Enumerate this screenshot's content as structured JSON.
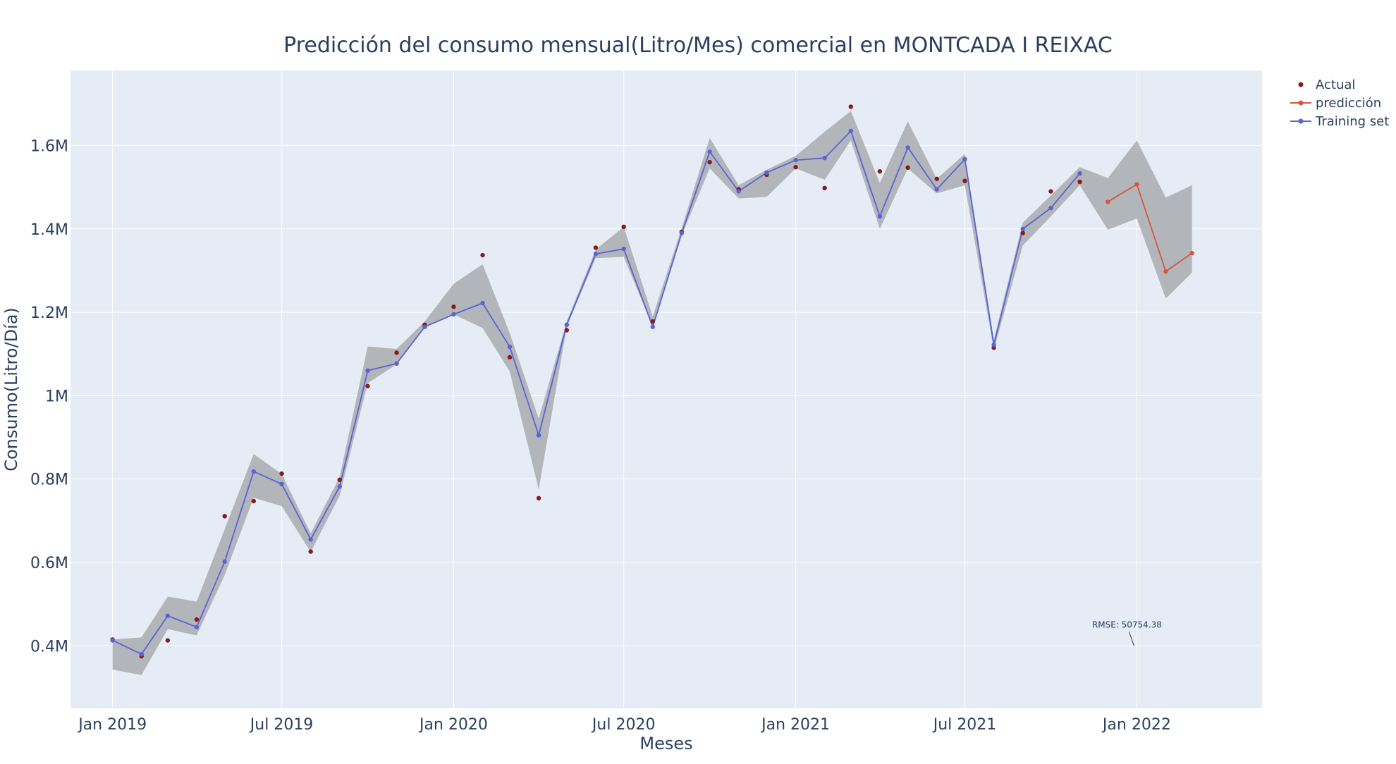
{
  "chart_data": {
    "type": "line",
    "title": "Predicción del consumo mensual(Litro/Mes) comercial en MONTCADA I REIXAC",
    "xlabel": "Meses",
    "ylabel": "Consumo(Litro/Día)",
    "xlim": [
      "2018-11-17",
      "2022-05-15"
    ],
    "ylim": [
      250000,
      1780000
    ],
    "x_ticks": [
      {
        "date": "2019-01-01",
        "label": "Jan 2019"
      },
      {
        "date": "2019-07-01",
        "label": "Jul 2019"
      },
      {
        "date": "2020-01-01",
        "label": "Jan 2020"
      },
      {
        "date": "2020-07-01",
        "label": "Jul 2020"
      },
      {
        "date": "2021-01-01",
        "label": "Jan 2021"
      },
      {
        "date": "2021-07-01",
        "label": "Jul 2021"
      },
      {
        "date": "2022-01-01",
        "label": "Jan 2022"
      }
    ],
    "y_ticks": [
      {
        "value": 400000,
        "label": "0.4M"
      },
      {
        "value": 600000,
        "label": "0.6M"
      },
      {
        "value": 800000,
        "label": "0.8M"
      },
      {
        "value": 1000000,
        "label": "1M"
      },
      {
        "value": 1200000,
        "label": "1.2M"
      },
      {
        "value": 1400000,
        "label": "1.4M"
      },
      {
        "value": 1600000,
        "label": "1.6M"
      }
    ],
    "grid": true,
    "legend_position": "top-right",
    "colors": {
      "actual": "#8b1a1a",
      "prediccion": "#d9553e",
      "training": "#5b63d6",
      "band": "#a9abae",
      "plot_bg": "#e5ecf6",
      "grid": "#ffffff",
      "text": "#2a3f5f"
    },
    "series": [
      {
        "name": "Actual",
        "mode": "markers",
        "points": [
          [
            "2019-01-01",
            415000
          ],
          [
            "2019-02-01",
            375000
          ],
          [
            "2019-03-01",
            413000
          ],
          [
            "2019-04-01",
            463000
          ],
          [
            "2019-05-01",
            711000
          ],
          [
            "2019-06-01",
            747000
          ],
          [
            "2019-07-01",
            813000
          ],
          [
            "2019-08-01",
            626000
          ],
          [
            "2019-09-01",
            798000
          ],
          [
            "2019-10-01",
            1023000
          ],
          [
            "2019-11-01",
            1103000
          ],
          [
            "2019-12-01",
            1170000
          ],
          [
            "2020-01-01",
            1213000
          ],
          [
            "2020-02-01",
            1337000
          ],
          [
            "2020-03-01",
            1092000
          ],
          [
            "2020-04-01",
            754000
          ],
          [
            "2020-05-01",
            1157000
          ],
          [
            "2020-06-01",
            1355000
          ],
          [
            "2020-07-01",
            1405000
          ],
          [
            "2020-08-01",
            1178000
          ],
          [
            "2020-09-01",
            1393000
          ],
          [
            "2020-10-01",
            1560000
          ],
          [
            "2020-11-01",
            1495000
          ],
          [
            "2020-12-01",
            1530000
          ],
          [
            "2021-01-01",
            1548000
          ],
          [
            "2021-02-01",
            1498000
          ],
          [
            "2021-03-01",
            1693000
          ],
          [
            "2021-04-01",
            1538000
          ],
          [
            "2021-05-01",
            1547000
          ],
          [
            "2021-06-01",
            1520000
          ],
          [
            "2021-07-01",
            1515000
          ],
          [
            "2021-08-01",
            1115000
          ],
          [
            "2021-09-01",
            1390000
          ],
          [
            "2021-10-01",
            1490000
          ],
          [
            "2021-11-01",
            1513000
          ]
        ]
      },
      {
        "name": "predicción",
        "mode": "lines+markers",
        "points": [
          [
            "2021-12-01",
            1465000
          ],
          [
            "2022-01-01",
            1507000
          ],
          [
            "2022-02-01",
            1298000
          ],
          [
            "2022-03-01",
            1342000
          ]
        ]
      },
      {
        "name": "Training set",
        "mode": "lines+markers",
        "points": [
          [
            "2019-01-01",
            413000
          ],
          [
            "2019-02-01",
            380000
          ],
          [
            "2019-03-01",
            472000
          ],
          [
            "2019-04-01",
            445000
          ],
          [
            "2019-05-01",
            602000
          ],
          [
            "2019-06-01",
            818000
          ],
          [
            "2019-07-01",
            788000
          ],
          [
            "2019-08-01",
            655000
          ],
          [
            "2019-09-01",
            782000
          ],
          [
            "2019-10-01",
            1060000
          ],
          [
            "2019-11-01",
            1077000
          ],
          [
            "2019-12-01",
            1165000
          ],
          [
            "2020-01-01",
            1195000
          ],
          [
            "2020-02-01",
            1222000
          ],
          [
            "2020-03-01",
            1117000
          ],
          [
            "2020-04-01",
            905000
          ],
          [
            "2020-05-01",
            1170000
          ],
          [
            "2020-06-01",
            1340000
          ],
          [
            "2020-07-01",
            1352000
          ],
          [
            "2020-08-01",
            1165000
          ],
          [
            "2020-09-01",
            1390000
          ],
          [
            "2020-10-01",
            1585000
          ],
          [
            "2020-11-01",
            1490000
          ],
          [
            "2020-12-01",
            1535000
          ],
          [
            "2021-01-01",
            1565000
          ],
          [
            "2021-02-01",
            1570000
          ],
          [
            "2021-03-01",
            1635000
          ],
          [
            "2021-04-01",
            1430000
          ],
          [
            "2021-05-01",
            1595000
          ],
          [
            "2021-06-01",
            1495000
          ],
          [
            "2021-07-01",
            1567000
          ],
          [
            "2021-08-01",
            1122000
          ],
          [
            "2021-09-01",
            1400000
          ],
          [
            "2021-10-01",
            1450000
          ],
          [
            "2021-11-01",
            1533000
          ]
        ]
      }
    ],
    "confidence_band": [
      [
        "2019-01-01",
        415000,
        343000
      ],
      [
        "2019-02-01",
        420000,
        330000
      ],
      [
        "2019-03-01",
        518000,
        440000
      ],
      [
        "2019-04-01",
        506000,
        425000
      ],
      [
        "2019-05-01",
        680000,
        570000
      ],
      [
        "2019-06-01",
        860000,
        755000
      ],
      [
        "2019-07-01",
        812000,
        735000
      ],
      [
        "2019-08-01",
        670000,
        625000
      ],
      [
        "2019-09-01",
        805000,
        760000
      ],
      [
        "2019-10-01",
        1118000,
        1030000
      ],
      [
        "2019-11-01",
        1112000,
        1075000
      ],
      [
        "2019-12-01",
        1178000,
        1165000
      ],
      [
        "2020-01-01",
        1268000,
        1195000
      ],
      [
        "2020-02-01",
        1315000,
        1162000
      ],
      [
        "2020-03-01",
        1150000,
        1058000
      ],
      [
        "2020-04-01",
        945000,
        775000
      ],
      [
        "2020-05-01",
        1178000,
        1165000
      ],
      [
        "2020-06-01",
        1350000,
        1330000
      ],
      [
        "2020-07-01",
        1405000,
        1333000
      ],
      [
        "2020-08-01",
        1190000,
        1165000
      ],
      [
        "2020-09-01",
        1402000,
        1385000
      ],
      [
        "2020-10-01",
        1618000,
        1545000
      ],
      [
        "2020-11-01",
        1505000,
        1473000
      ],
      [
        "2020-12-01",
        1542000,
        1477000
      ],
      [
        "2021-01-01",
        1575000,
        1545000
      ],
      [
        "2021-02-01",
        1633000,
        1518000
      ],
      [
        "2021-03-01",
        1683000,
        1612000
      ],
      [
        "2021-04-01",
        1510000,
        1400000
      ],
      [
        "2021-05-01",
        1658000,
        1545000
      ],
      [
        "2021-06-01",
        1520000,
        1485000
      ],
      [
        "2021-07-01",
        1580000,
        1505000
      ],
      [
        "2021-08-01",
        1135000,
        1110000
      ],
      [
        "2021-09-01",
        1415000,
        1360000
      ],
      [
        "2021-10-01",
        1480000,
        1430000
      ],
      [
        "2021-11-01",
        1548000,
        1505000
      ],
      [
        "2021-12-01",
        1522000,
        1398000
      ],
      [
        "2022-01-01",
        1612000,
        1425000
      ],
      [
        "2022-02-01",
        1475000,
        1233000
      ],
      [
        "2022-03-01",
        1505000,
        1295000
      ]
    ],
    "annotation": {
      "text": "RMSE: 50754.38",
      "point": [
        "2021-12-29",
        400000
      ]
    }
  }
}
